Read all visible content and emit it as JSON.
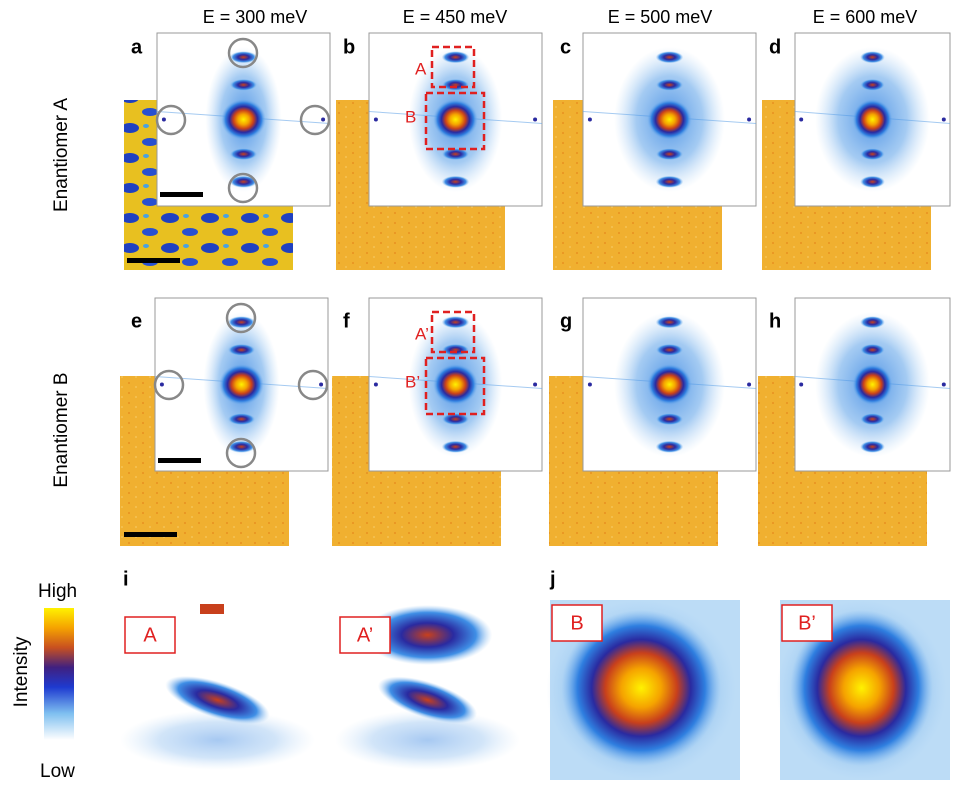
{
  "column_headers": [
    "E = 300 meV",
    "E = 450 meV",
    "E = 500 meV",
    "E = 600 meV"
  ],
  "row_headers": [
    "Enantiomer A",
    "Enantiomer B"
  ],
  "panel_labels": [
    "a",
    "b",
    "c",
    "d",
    "e",
    "f",
    "g",
    "h",
    "i",
    "j"
  ],
  "box_labels": {
    "panel_b": [
      "A",
      "B"
    ],
    "panel_f": [
      "A’",
      "B’"
    ]
  },
  "zoom_labels": [
    "A",
    "A’",
    "B",
    "B’"
  ],
  "colorbar": {
    "title": "Intensity",
    "high": "High",
    "low": "Low"
  }
}
